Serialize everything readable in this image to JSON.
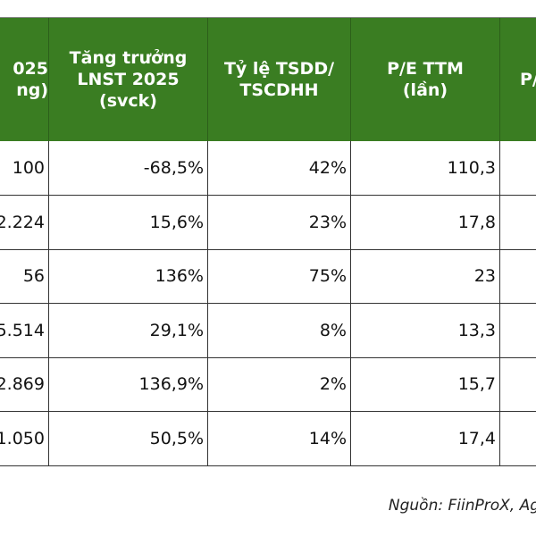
{
  "table": {
    "header": [
      [
        "025",
        "ng)"
      ],
      [
        "Tăng trưởng",
        "LNST 2025",
        "(svck)"
      ],
      [
        "Tỷ lệ TSDD/",
        "TSCDHH"
      ],
      [
        "P/E TTM",
        "(lần)"
      ],
      [
        "P/"
      ]
    ],
    "rows": [
      [
        "100",
        "-68,5%",
        "42%",
        "110,3"
      ],
      [
        "2.224",
        "15,6%",
        "23%",
        "17,8"
      ],
      [
        "56",
        "136%",
        "75%",
        "23"
      ],
      [
        "5.514",
        "29,1%",
        "8%",
        "13,3"
      ],
      [
        "2.869",
        "136,9%",
        "2%",
        "15,7"
      ],
      [
        "1.050",
        "50,5%",
        "14%",
        "17,4"
      ]
    ]
  },
  "source": "Nguồn: FiinProX, Ag"
}
